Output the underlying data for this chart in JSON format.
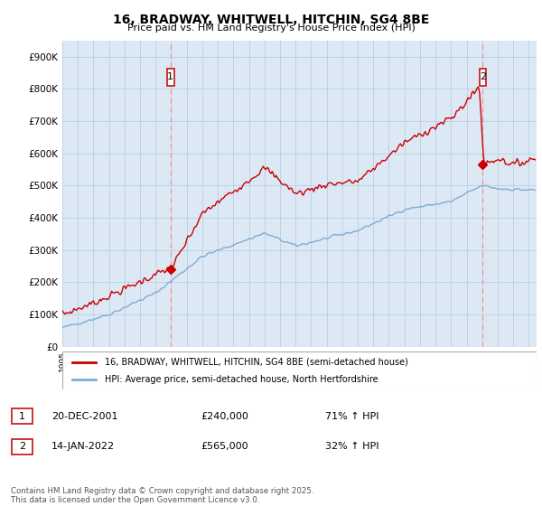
{
  "title": "16, BRADWAY, WHITWELL, HITCHIN, SG4 8BE",
  "subtitle": "Price paid vs. HM Land Registry's House Price Index (HPI)",
  "ylim": [
    0,
    950000
  ],
  "yticks": [
    0,
    100000,
    200000,
    300000,
    400000,
    500000,
    600000,
    700000,
    800000,
    900000
  ],
  "ytick_labels": [
    "£0",
    "£100K",
    "£200K",
    "£300K",
    "£400K",
    "£500K",
    "£600K",
    "£700K",
    "£800K",
    "£900K"
  ],
  "line1_color": "#cc0000",
  "line2_color": "#7dadd4",
  "sale1_date": "20-DEC-2001",
  "sale1_price": 240000,
  "sale1_year": 2001.958,
  "sale1_hpi": "71% ↑ HPI",
  "sale2_date": "14-JAN-2022",
  "sale2_price": 565000,
  "sale2_year": 2022.042,
  "sale2_hpi": "32% ↑ HPI",
  "legend1": "16, BRADWAY, WHITWELL, HITCHIN, SG4 8BE (semi-detached house)",
  "legend2": "HPI: Average price, semi-detached house, North Hertfordshire",
  "footer": "Contains HM Land Registry data © Crown copyright and database right 2025.\nThis data is licensed under the Open Government Licence v3.0.",
  "background_color": "#ffffff",
  "plot_background": "#dce9f5",
  "grid_color": "#b8cfe0",
  "vline_color": "#ff8888",
  "ann_box_color": "#cc2222"
}
